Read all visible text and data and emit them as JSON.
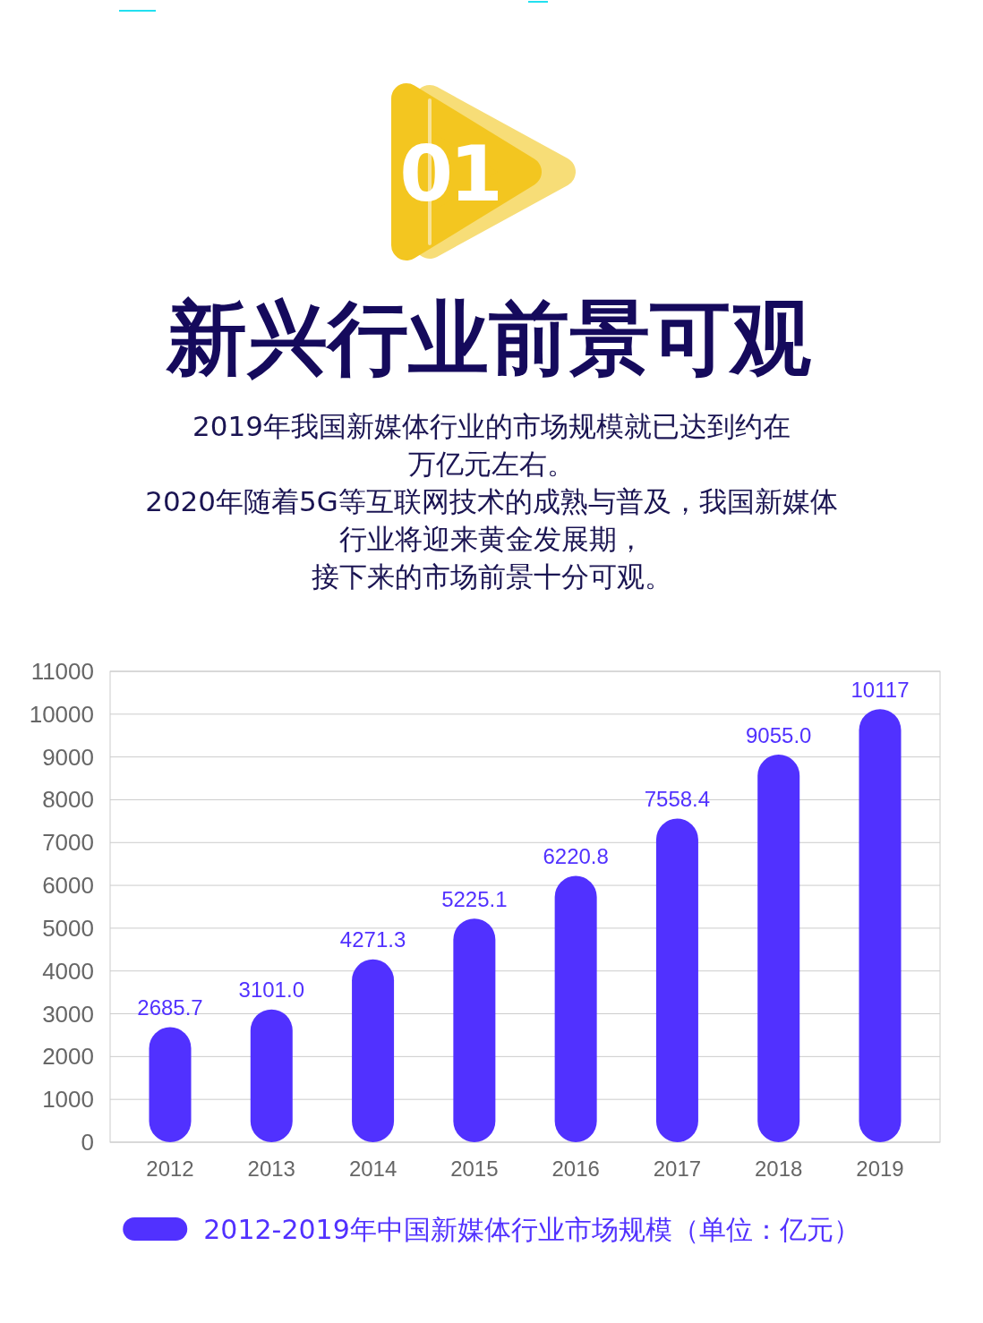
{
  "chart_data": {
    "type": "bar",
    "title": "新兴行业前景可观",
    "subtitle": "2019年我国新媒体行业的市场规模就已达到约在万亿元左右。",
    "annotations": [
      "01",
      "2020年随着5G等互联网技术的成熟与普及，我国新媒体行业将迎来黄金发展期，",
      "接下来的市场前景十分可观。"
    ],
    "categories": [
      "2012",
      "2013",
      "2014",
      "2015",
      "2016",
      "2017",
      "2018",
      "2019"
    ],
    "series": [
      {
        "name": "2012-2019年中国新媒体行业市场规模（单位：亿元）",
        "color": "#5131ff",
        "values": [
          2685.7,
          3101.0,
          4271.3,
          5225.1,
          6220.8,
          7558.4,
          9055.0,
          10117
        ],
        "value_labels": [
          "2685.7",
          "3101.0",
          "4271.3",
          "5225.1",
          "6220.8",
          "7558.4",
          "9055.0",
          "10117"
        ]
      }
    ],
    "ylim": [
      0,
      11000
    ],
    "yticks": [
      0,
      1000,
      2000,
      3000,
      4000,
      5000,
      6000,
      7000,
      8000,
      9000,
      10000,
      11000
    ],
    "grid": "y",
    "legend": "bottom"
  }
}
